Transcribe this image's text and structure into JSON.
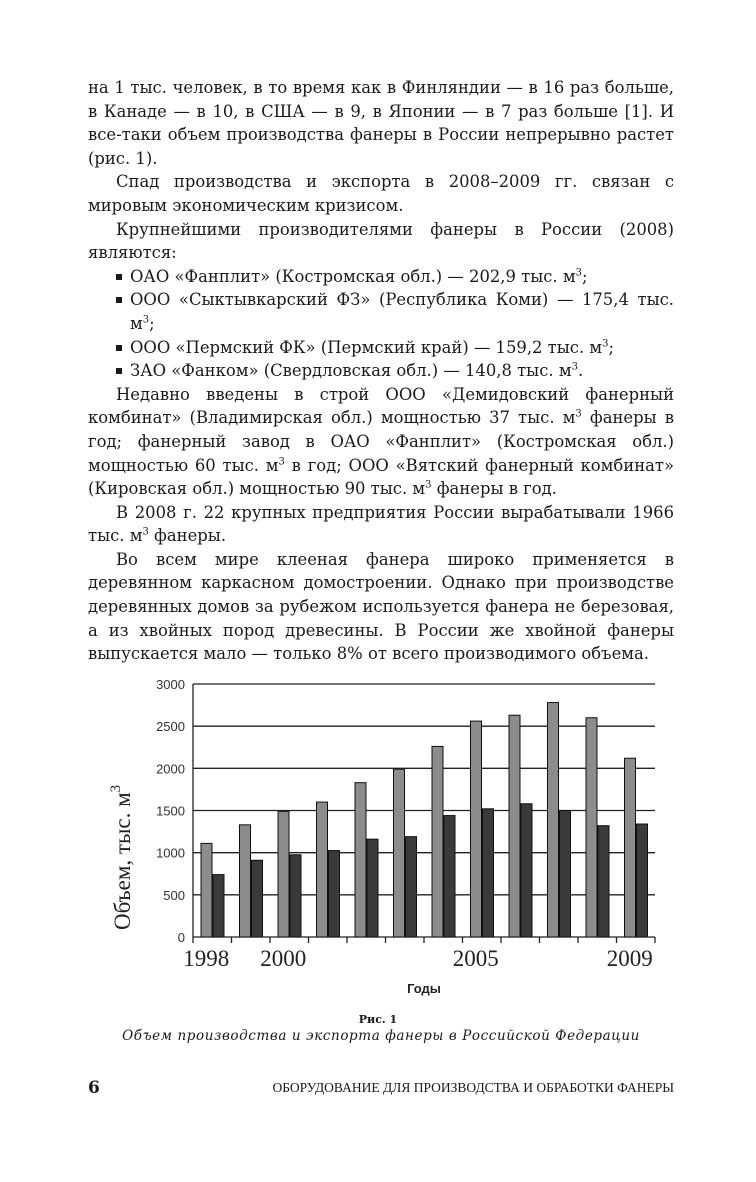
{
  "paragraphs": [
    "на 1 тыс. человек, в то время как в Финляндии — в 16 раз больше, в Канаде — в 10, в США — в 9, в Японии — в 7 раз больше [1]. И все-таки объем производства фанеры в России непрерывно растет (рис. 1).",
    "Спад производства и экспорта в 2008–2009 гг. связан с мировым экономическим кризисом.",
    "Крупнейшими производителями фанеры в России (2008) являются:"
  ],
  "producers": [
    {
      "text": "ОАО «Фанплит» (Костромская обл.) — 202,9 тыс. м",
      "sup": "3",
      "end": ";"
    },
    {
      "text": "ООО «Сыктывкарский ФЗ» (Республика Коми) — 175,4 тыс. м",
      "sup": "3",
      "end": ";"
    },
    {
      "text": "ООО «Пермский ФК» (Пермский край) — 159,2 тыс. м",
      "sup": "3",
      "end": ";"
    },
    {
      "text": "ЗАО «Фанком» (Свердловская обл.) — 140,8 тыс. м",
      "sup": "3",
      "end": "."
    }
  ],
  "para_new_plants": {
    "a": "Недавно введены в строй ООО «Демидовский фанерный комбинат» (Владимирская обл.) мощностью 37 тыс. м",
    "b": " фанеры в год; фанерный завод в ОАО «Фанплит» (Костромская обл.) мощностью 60 тыс. м",
    "c": " в год; ООО «Вятский фанерный комбинат» (Кировская обл.) мощностью 90 тыс. м",
    "d": " фанеры в год.",
    "sup": "3"
  },
  "para_2008": {
    "a": "В 2008 г. 22 крупных предприятия России вырабатывали 1966 тыс. м",
    "sup": "3",
    "b": " фанеры."
  },
  "para_last": "Во всем мире клееная фанера широко применяется в деревянном каркасном домостроении. Однако при производстве деревянных домов за рубежом используется фанера не березовая, а из хвойных пород древесины. В России же хвойной фанеры выпускается мало — только 8% от всего производимого объема.",
  "chart_data": {
    "type": "bar",
    "xlabel": "Годы",
    "ylabel": "Объем, тыс. м",
    "ylabel_sup": "3",
    "ylim": [
      0,
      3000
    ],
    "yticks": [
      0,
      500,
      1000,
      1500,
      2000,
      2500,
      3000
    ],
    "xtick_labels": [
      "1998",
      "2000",
      "2005",
      "2009"
    ],
    "grid": true,
    "categories": [
      1998,
      1999,
      2000,
      2001,
      2002,
      2003,
      2004,
      2005,
      2006,
      2007,
      2008,
      2009
    ],
    "series": [
      {
        "values": [
          1110,
          1330,
          1490,
          1600,
          1830,
          1990,
          2260,
          2560,
          2630,
          2780,
          2600,
          2120
        ],
        "color": "#8c8c8c"
      },
      {
        "values": [
          740,
          910,
          975,
          1025,
          1160,
          1190,
          1440,
          1520,
          1580,
          1500,
          1320,
          1340
        ],
        "color": "#3a3a3a"
      }
    ]
  },
  "figure": {
    "number": "Рис. 1",
    "caption": "Объем производства и экспорта фанеры в Российской Федерации"
  },
  "footer": {
    "page_number": "6",
    "running_title": "ОБОРУДОВАНИЕ ДЛЯ ПРОИЗВОДСТВА И ОБРАБОТКИ ФАНЕРЫ"
  }
}
